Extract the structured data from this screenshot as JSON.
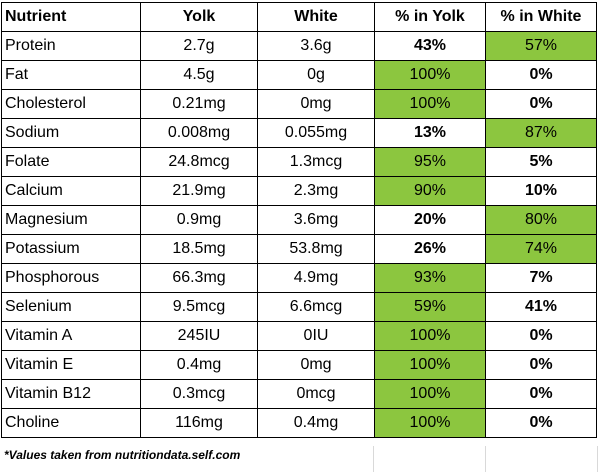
{
  "table": {
    "headers": [
      "Nutrient",
      "Yolk",
      "White",
      "% in Yolk",
      "% in White"
    ],
    "highlight_color": "#8cc63f",
    "rows": [
      {
        "nutrient": "Protein",
        "yolk": "2.7g",
        "white": "3.6g",
        "pct_yolk": "43%",
        "pct_white": "57%",
        "highlight": "white"
      },
      {
        "nutrient": "Fat",
        "yolk": "4.5g",
        "white": "0g",
        "pct_yolk": "100%",
        "pct_white": "0%",
        "highlight": "yolk"
      },
      {
        "nutrient": "Cholesterol",
        "yolk": "0.21mg",
        "white": "0mg",
        "pct_yolk": "100%",
        "pct_white": "0%",
        "highlight": "yolk"
      },
      {
        "nutrient": "Sodium",
        "yolk": "0.008mg",
        "white": "0.055mg",
        "pct_yolk": "13%",
        "pct_white": "87%",
        "highlight": "white"
      },
      {
        "nutrient": "Folate",
        "yolk": "24.8mcg",
        "white": "1.3mcg",
        "pct_yolk": "95%",
        "pct_white": "5%",
        "highlight": "yolk"
      },
      {
        "nutrient": "Calcium",
        "yolk": "21.9mg",
        "white": "2.3mg",
        "pct_yolk": "90%",
        "pct_white": "10%",
        "highlight": "yolk"
      },
      {
        "nutrient": "Magnesium",
        "yolk": "0.9mg",
        "white": "3.6mg",
        "pct_yolk": "20%",
        "pct_white": "80%",
        "highlight": "white"
      },
      {
        "nutrient": "Potassium",
        "yolk": "18.5mg",
        "white": "53.8mg",
        "pct_yolk": "26%",
        "pct_white": "74%",
        "highlight": "white"
      },
      {
        "nutrient": "Phosphorous",
        "yolk": "66.3mg",
        "white": "4.9mg",
        "pct_yolk": "93%",
        "pct_white": "7%",
        "highlight": "yolk"
      },
      {
        "nutrient": "Selenium",
        "yolk": "9.5mcg",
        "white": "6.6mcg",
        "pct_yolk": "59%",
        "pct_white": "41%",
        "highlight": "yolk"
      },
      {
        "nutrient": "Vitamin A",
        "yolk": "245IU",
        "white": "0IU",
        "pct_yolk": "100%",
        "pct_white": "0%",
        "highlight": "yolk"
      },
      {
        "nutrient": "Vitamin E",
        "yolk": "0.4mg",
        "white": "0mg",
        "pct_yolk": "100%",
        "pct_white": "0%",
        "highlight": "yolk"
      },
      {
        "nutrient": "Vitamin B12",
        "yolk": "0.3mcg",
        "white": "0mcg",
        "pct_yolk": "100%",
        "pct_white": "0%",
        "highlight": "yolk"
      },
      {
        "nutrient": "Choline",
        "yolk": "116mg",
        "white": "0.4mg",
        "pct_yolk": "100%",
        "pct_white": "0%",
        "highlight": "yolk"
      }
    ]
  },
  "footnote": "*Values taken from nutritiondata.self.com"
}
